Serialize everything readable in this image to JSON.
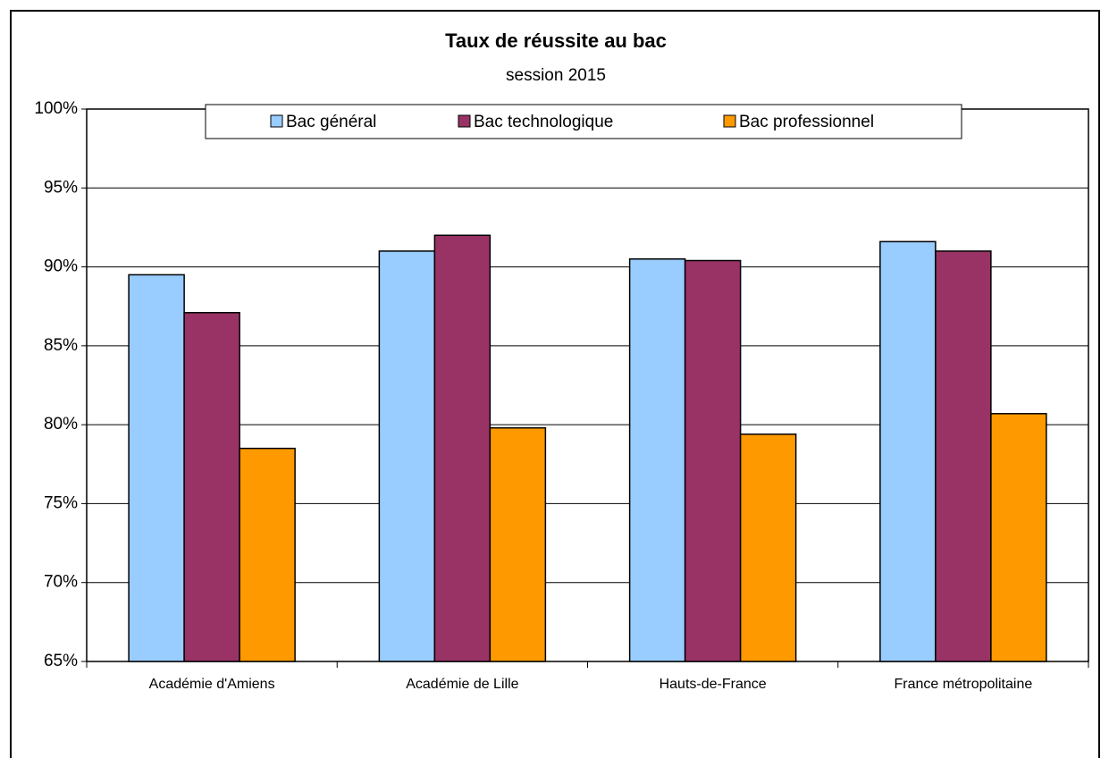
{
  "chart_data": {
    "type": "bar",
    "title": "Taux de réussite au bac",
    "subtitle": "session 2015",
    "categories": [
      "Académie d'Amiens",
      "Académie de Lille",
      "Hauts-de-France",
      "France métropolitaine"
    ],
    "series": [
      {
        "name": "Bac général",
        "color": "#99ccff",
        "values": [
          89.5,
          91.0,
          90.5,
          91.6
        ]
      },
      {
        "name": "Bac technologique",
        "color": "#993366",
        "values": [
          87.1,
          92.0,
          90.4,
          91.0
        ]
      },
      {
        "name": "Bac professionnel",
        "color": "#ff9900",
        "values": [
          78.5,
          79.8,
          79.4,
          80.7
        ]
      }
    ],
    "ylim": [
      65,
      100
    ],
    "yticks": [
      {
        "value": 65,
        "label": "65%"
      },
      {
        "value": 70,
        "label": "70%"
      },
      {
        "value": 75,
        "label": "75%"
      },
      {
        "value": 80,
        "label": "80%"
      },
      {
        "value": 85,
        "label": "85%"
      },
      {
        "value": 90,
        "label": "90%"
      },
      {
        "value": 95,
        "label": "95%"
      },
      {
        "value": 100,
        "label": "100%"
      }
    ],
    "grid": true,
    "legend": "top"
  }
}
